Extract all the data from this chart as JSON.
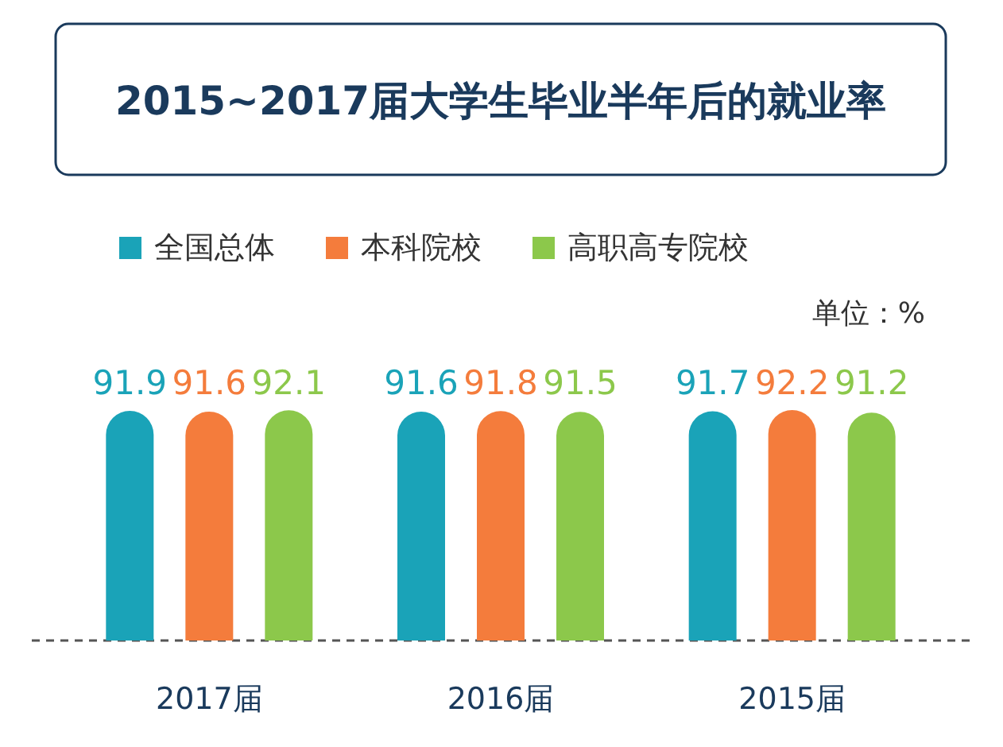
{
  "chart_data": {
    "type": "bar",
    "title": "2015~2017届大学生毕业半年后的就业率",
    "categories": [
      "2017届",
      "2016届",
      "2015届"
    ],
    "series": [
      {
        "name": "全国总体",
        "color": "#1aa3b8",
        "values": [
          91.9,
          91.6,
          91.7
        ]
      },
      {
        "name": "本科院校",
        "color": "#f47c3c",
        "values": [
          91.6,
          91.8,
          92.2
        ]
      },
      {
        "name": "高职高专院校",
        "color": "#8cc84b",
        "values": [
          92.1,
          91.5,
          91.2
        ]
      }
    ],
    "data_labels": true,
    "legend": "top left",
    "annotations": [
      "单位：%"
    ]
  }
}
